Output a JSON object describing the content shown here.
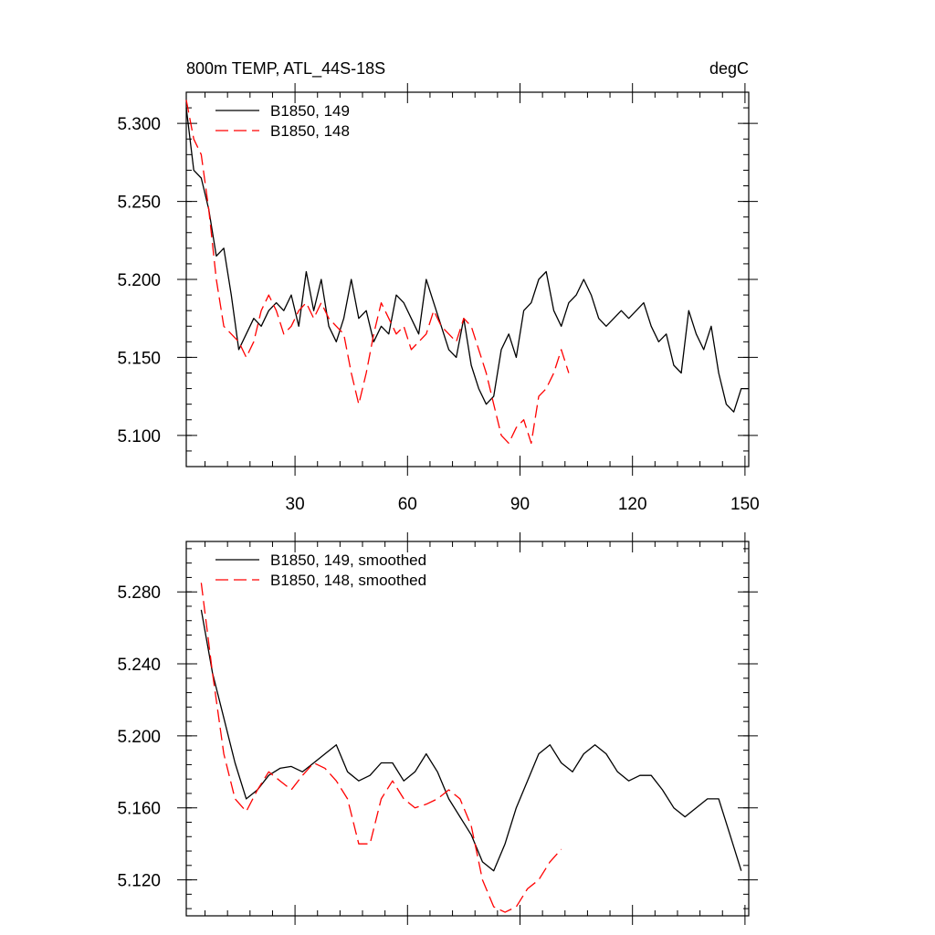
{
  "chart_data": [
    {
      "type": "line",
      "title": "800m TEMP, ATL_44S-18S",
      "units": "degC",
      "xlabel": "",
      "ylabel": "",
      "xlim": [
        1,
        151
      ],
      "ylim": [
        5.08,
        5.32
      ],
      "x_ticks": [
        30,
        60,
        90,
        120,
        150
      ],
      "y_ticks": [
        5.1,
        5.15,
        5.2,
        5.25,
        5.3
      ],
      "y_tick_labels": [
        "5.100",
        "5.150",
        "5.200",
        "5.250",
        "5.300"
      ],
      "x_tick_labels": [
        "30",
        "60",
        "90",
        "120",
        "150"
      ],
      "legend_position": "top-left",
      "series": [
        {
          "name": "B1850, 149",
          "color": "#000000",
          "dash": "solid",
          "x": [
            1,
            3,
            5,
            7,
            9,
            11,
            13,
            15,
            17,
            19,
            21,
            23,
            25,
            27,
            29,
            31,
            33,
            35,
            37,
            39,
            41,
            43,
            45,
            47,
            49,
            51,
            53,
            55,
            57,
            59,
            61,
            63,
            65,
            67,
            69,
            71,
            73,
            75,
            77,
            79,
            81,
            83,
            85,
            87,
            89,
            91,
            93,
            95,
            97,
            99,
            101,
            103,
            105,
            107,
            109,
            111,
            113,
            115,
            117,
            119,
            121,
            123,
            125,
            127,
            129,
            131,
            133,
            135,
            137,
            139,
            141,
            143,
            145,
            147,
            149,
            151
          ],
          "values": [
            5.31,
            5.27,
            5.265,
            5.245,
            5.215,
            5.22,
            5.19,
            5.155,
            5.165,
            5.175,
            5.17,
            5.18,
            5.185,
            5.18,
            5.19,
            5.17,
            5.205,
            5.18,
            5.2,
            5.17,
            5.16,
            5.175,
            5.2,
            5.175,
            5.18,
            5.16,
            5.17,
            5.165,
            5.19,
            5.185,
            5.175,
            5.165,
            5.2,
            5.185,
            5.17,
            5.155,
            5.15,
            5.175,
            5.145,
            5.13,
            5.12,
            5.125,
            5.155,
            5.165,
            5.15,
            5.18,
            5.185,
            5.2,
            5.205,
            5.18,
            5.17,
            5.185,
            5.19,
            5.2,
            5.19,
            5.175,
            5.17,
            5.175,
            5.18,
            5.175,
            5.18,
            5.185,
            5.17,
            5.16,
            5.165,
            5.145,
            5.14,
            5.18,
            5.165,
            5.155,
            5.17,
            5.14,
            5.12,
            5.115,
            5.13,
            5.13
          ]
        },
        {
          "name": "B1850, 148",
          "color": "#ff0000",
          "dash": "dashed",
          "x": [
            1,
            3,
            5,
            7,
            9,
            11,
            13,
            15,
            17,
            19,
            21,
            23,
            25,
            27,
            29,
            31,
            33,
            35,
            37,
            39,
            41,
            43,
            45,
            47,
            49,
            51,
            53,
            55,
            57,
            59,
            61,
            63,
            65,
            67,
            69,
            71,
            73,
            75,
            77,
            79,
            81,
            83,
            85,
            87,
            89,
            91,
            93,
            95,
            97,
            99,
            101,
            103
          ],
          "values": [
            5.315,
            5.29,
            5.28,
            5.245,
            5.2,
            5.17,
            5.165,
            5.16,
            5.15,
            5.16,
            5.18,
            5.19,
            5.18,
            5.165,
            5.17,
            5.18,
            5.185,
            5.175,
            5.185,
            5.175,
            5.17,
            5.165,
            5.14,
            5.12,
            5.14,
            5.165,
            5.185,
            5.175,
            5.165,
            5.17,
            5.155,
            5.16,
            5.165,
            5.18,
            5.17,
            5.165,
            5.16,
            5.175,
            5.17,
            5.155,
            5.14,
            5.12,
            5.1,
            5.095,
            5.105,
            5.11,
            5.095,
            5.125,
            5.13,
            5.14,
            5.155,
            5.14
          ]
        }
      ]
    },
    {
      "type": "line",
      "title": "",
      "xlabel": "",
      "ylabel": "",
      "xlim": [
        1,
        151
      ],
      "ylim": [
        5.1,
        5.308
      ],
      "x_ticks": [
        30,
        60,
        90,
        120,
        150
      ],
      "y_ticks": [
        5.12,
        5.16,
        5.2,
        5.24,
        5.28
      ],
      "y_tick_labels": [
        "5.120",
        "5.160",
        "5.200",
        "5.240",
        "5.280"
      ],
      "x_tick_labels": [],
      "legend_position": "top-left",
      "series": [
        {
          "name": "B1850, 149, smoothed",
          "color": "#000000",
          "dash": "solid",
          "x": [
            5,
            8,
            11,
            14,
            17,
            20,
            23,
            26,
            29,
            32,
            35,
            38,
            41,
            44,
            47,
            50,
            53,
            56,
            59,
            62,
            65,
            68,
            71,
            74,
            77,
            80,
            83,
            86,
            89,
            92,
            95,
            98,
            101,
            104,
            107,
            110,
            113,
            116,
            119,
            122,
            125,
            128,
            131,
            134,
            137,
            140,
            143,
            146,
            149
          ],
          "values": [
            5.27,
            5.235,
            5.21,
            5.185,
            5.165,
            5.17,
            5.178,
            5.182,
            5.183,
            5.18,
            5.185,
            5.19,
            5.195,
            5.18,
            5.175,
            5.178,
            5.185,
            5.185,
            5.175,
            5.18,
            5.19,
            5.18,
            5.165,
            5.155,
            5.145,
            5.13,
            5.125,
            5.14,
            5.16,
            5.175,
            5.19,
            5.195,
            5.185,
            5.18,
            5.19,
            5.195,
            5.19,
            5.18,
            5.175,
            5.178,
            5.178,
            5.17,
            5.16,
            5.155,
            5.16,
            5.165,
            5.165,
            5.145,
            5.125
          ]
        },
        {
          "name": "B1850, 148, smoothed",
          "color": "#ff0000",
          "dash": "dashed",
          "x": [
            5,
            8,
            11,
            14,
            17,
            20,
            23,
            26,
            29,
            32,
            35,
            38,
            41,
            44,
            47,
            50,
            53,
            56,
            59,
            62,
            65,
            68,
            71,
            74,
            77,
            80,
            83,
            86,
            89,
            92,
            95,
            98,
            101
          ],
          "values": [
            5.285,
            5.235,
            5.19,
            5.165,
            5.158,
            5.17,
            5.18,
            5.175,
            5.17,
            5.178,
            5.185,
            5.182,
            5.175,
            5.165,
            5.14,
            5.14,
            5.165,
            5.175,
            5.165,
            5.16,
            5.162,
            5.165,
            5.17,
            5.165,
            5.15,
            5.12,
            5.105,
            5.102,
            5.105,
            5.115,
            5.12,
            5.13,
            5.137
          ]
        }
      ]
    }
  ]
}
